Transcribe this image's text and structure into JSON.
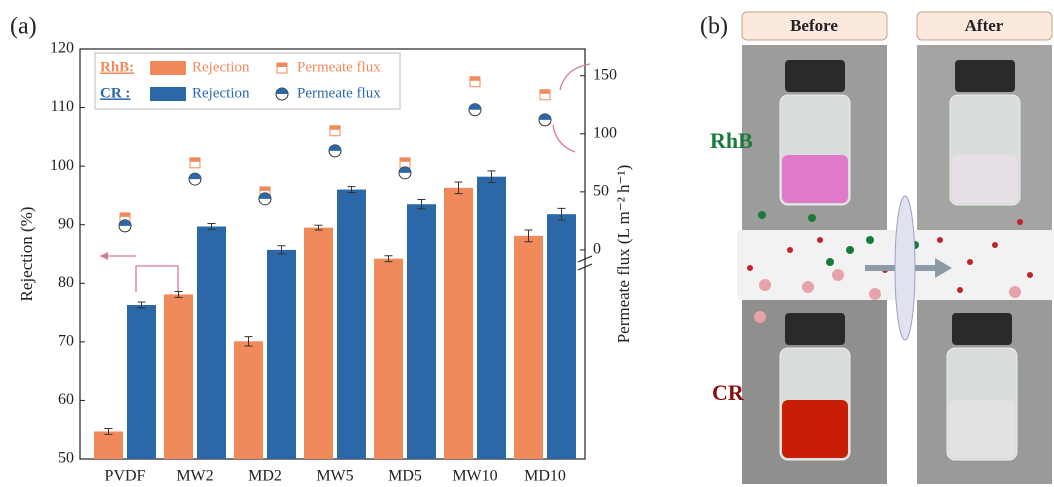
{
  "chart_data": {
    "type": "bar",
    "label": "(a)",
    "categories": [
      "PVDF",
      "MW2",
      "MD2",
      "MW5",
      "MD5",
      "MW10",
      "MD10"
    ],
    "ylabel": "Rejection (%)",
    "y2label": "Permeate flux (L m⁻² h⁻¹)",
    "ylim": [
      50,
      120
    ],
    "yticks": [
      50,
      60,
      70,
      80,
      90,
      100,
      110,
      120
    ],
    "y2lim": [
      -180,
      173
    ],
    "y2ticks": [
      0,
      50,
      100,
      150
    ],
    "groups": [
      {
        "label": "RhB:",
        "color": "#f08a5a",
        "series": [
          {
            "name": "Rejection",
            "values": [
              54.7,
              78.1,
              70.1,
              89.5,
              84.2,
              96.3,
              88.1
            ],
            "errors": [
              0.5,
              0.5,
              0.8,
              0.4,
              0.5,
              1.0,
              1.0
            ]
          },
          {
            "name": "Permeate flux",
            "axis": "y2",
            "marker": "square",
            "values": [
              27.6,
              75,
              50,
              102.6,
              75,
              144.8,
              133.6
            ]
          }
        ]
      },
      {
        "label": "CR :",
        "color": "#2c68a8",
        "series": [
          {
            "name": "Rejection",
            "values": [
              76.3,
              89.7,
              85.7,
              96.0,
              93.5,
              98.2,
              91.8
            ],
            "errors": [
              0.5,
              0.5,
              0.7,
              0.5,
              0.8,
              1.0,
              1.0
            ]
          },
          {
            "name": "Permeate flux",
            "axis": "y2",
            "marker": "circle",
            "values": [
              20.7,
              61,
              44,
              85.3,
              66.4,
              120.7,
              112
            ]
          }
        ]
      }
    ]
  },
  "panel_b": {
    "label": "(b)",
    "before": "Before",
    "after": "After",
    "top_dye": "RhB",
    "bottom_dye": "CR"
  }
}
